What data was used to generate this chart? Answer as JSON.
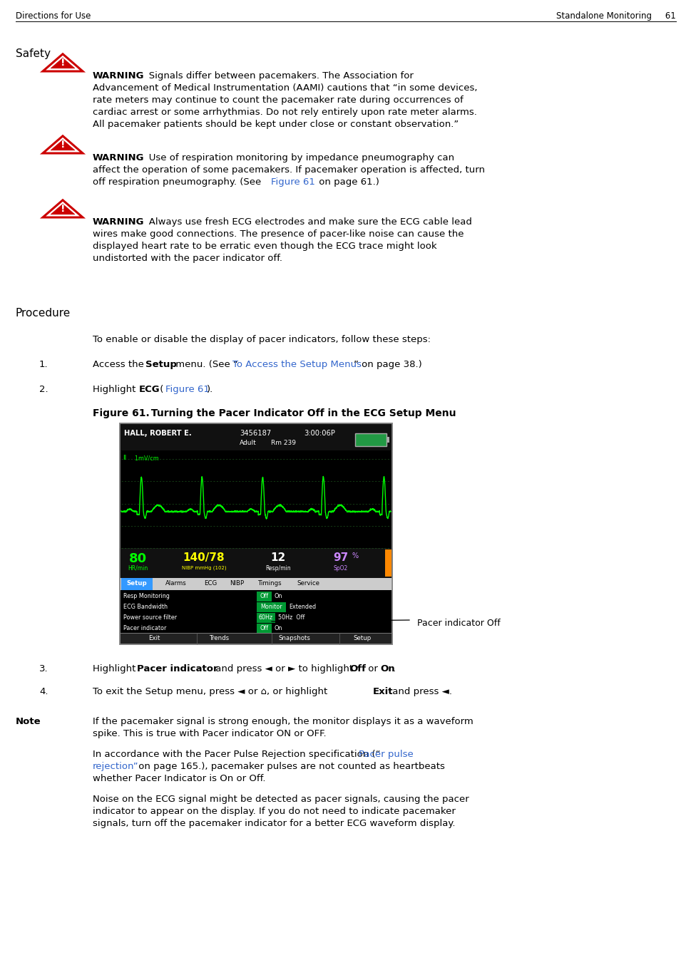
{
  "page_header_left": "Directions for Use",
  "page_header_right": "Standalone Monitoring",
  "page_number": "61",
  "section_safety": "Safety",
  "section_procedure": "Procedure",
  "warning_red": "#cc0000",
  "link_color": "#3366cc",
  "bg_color": "#ffffff",
  "monitor_bg": "#000000",
  "monitor_green": "#00ff00",
  "monitor_yellow": "#ffff00",
  "monitor_purple": "#cc88ff",
  "monitor_white": "#ffffff",
  "monitor_header_bg": "#111111",
  "monitor_setup_blue": "#3399ff",
  "monitor_green_highlight": "#00aa44",
  "monitor_orange": "#ff8800",
  "pacer_label": "Pacer indicator Off"
}
